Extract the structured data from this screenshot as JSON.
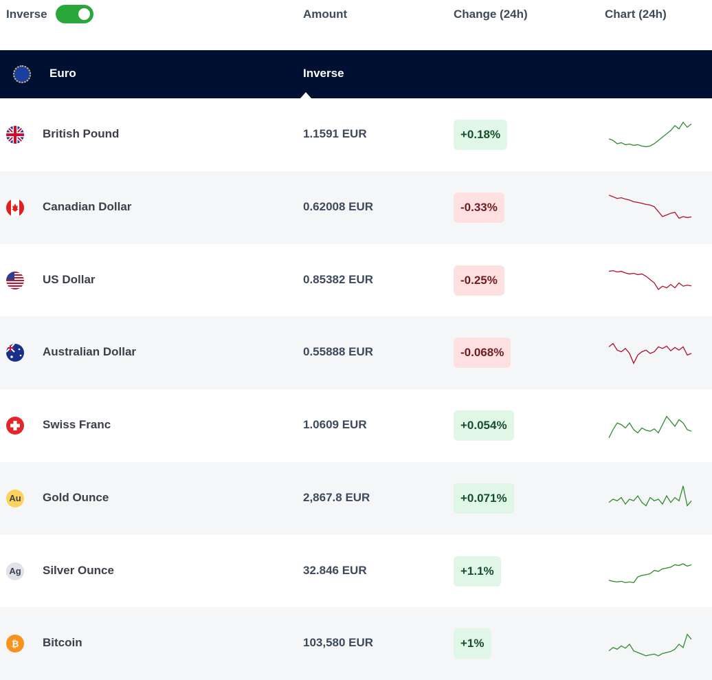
{
  "header": {
    "inverse_label": "Inverse",
    "inverse_on": true,
    "amount": "Amount",
    "change": "Change (24h)",
    "chart": "Chart (24h)"
  },
  "base": {
    "name": "Euro",
    "icon": "eu-flag-icon",
    "mode": "Inverse"
  },
  "colors": {
    "up": "#2e8b2e",
    "down": "#b0102a",
    "bar": "#001033",
    "toggle": "#2aa73a"
  },
  "rows": [
    {
      "name": "British Pound",
      "icon": "uk-flag-icon",
      "amount": "1.1591 EUR",
      "change": "+0.18%",
      "dir": "up",
      "spark": [
        40,
        35,
        25,
        28,
        22,
        24,
        20,
        22,
        18,
        16,
        18,
        25,
        35,
        45,
        55,
        65,
        80,
        70,
        90,
        75,
        85
      ]
    },
    {
      "name": "Canadian Dollar",
      "icon": "canada-flag-icon",
      "amount": "0.62008 EUR",
      "change": "-0.33%",
      "dir": "down",
      "spark": [
        90,
        85,
        80,
        82,
        78,
        75,
        70,
        68,
        65,
        62,
        60,
        55,
        40,
        25,
        30,
        35,
        38,
        20,
        25,
        22,
        24
      ]
    },
    {
      "name": "US Dollar",
      "icon": "us-flag-icon",
      "amount": "0.85382 EUR",
      "change": "-0.25%",
      "dir": "down",
      "spark": [
        80,
        82,
        78,
        80,
        75,
        72,
        74,
        70,
        72,
        65,
        55,
        45,
        25,
        35,
        30,
        40,
        30,
        45,
        35,
        38,
        36
      ]
    },
    {
      "name": "Australian Dollar",
      "icon": "australia-flag-icon",
      "amount": "0.55888 EUR",
      "change": "-0.068%",
      "dir": "down",
      "spark": [
        70,
        80,
        60,
        55,
        65,
        50,
        20,
        45,
        55,
        60,
        50,
        55,
        70,
        65,
        72,
        58,
        68,
        60,
        70,
        45,
        50
      ]
    },
    {
      "name": "Swiss Franc",
      "icon": "swiss-flag-icon",
      "amount": "1.0609 EUR",
      "change": "+0.054%",
      "dir": "up",
      "spark": [
        15,
        40,
        60,
        55,
        45,
        60,
        40,
        30,
        45,
        38,
        35,
        42,
        30,
        55,
        80,
        65,
        50,
        70,
        60,
        40,
        35
      ]
    },
    {
      "name": "Gold Ounce",
      "icon": "gold-icon",
      "amount": "2,867.8 EUR",
      "change": "+0.071%",
      "dir": "up",
      "spark": [
        40,
        50,
        45,
        55,
        35,
        50,
        45,
        60,
        40,
        30,
        55,
        45,
        50,
        35,
        60,
        40,
        55,
        45,
        90,
        30,
        45
      ]
    },
    {
      "name": "Silver Ounce",
      "icon": "silver-icon",
      "amount": "32.846 EUR",
      "change": "+1.1%",
      "dir": "up",
      "spark": [
        25,
        22,
        20,
        22,
        18,
        20,
        18,
        35,
        40,
        42,
        45,
        55,
        52,
        60,
        62,
        65,
        72,
        70,
        75,
        68,
        72
      ]
    },
    {
      "name": "Bitcoin",
      "icon": "bitcoin-icon",
      "amount": "103,580 EUR",
      "change": "+1%",
      "dir": "up",
      "spark": [
        30,
        40,
        35,
        45,
        38,
        50,
        30,
        25,
        20,
        15,
        18,
        20,
        15,
        22,
        25,
        28,
        35,
        50,
        40,
        80,
        65
      ]
    }
  ],
  "icon_text": {
    "gold": "Au",
    "silver": "Ag",
    "bitcoin": "₿"
  }
}
